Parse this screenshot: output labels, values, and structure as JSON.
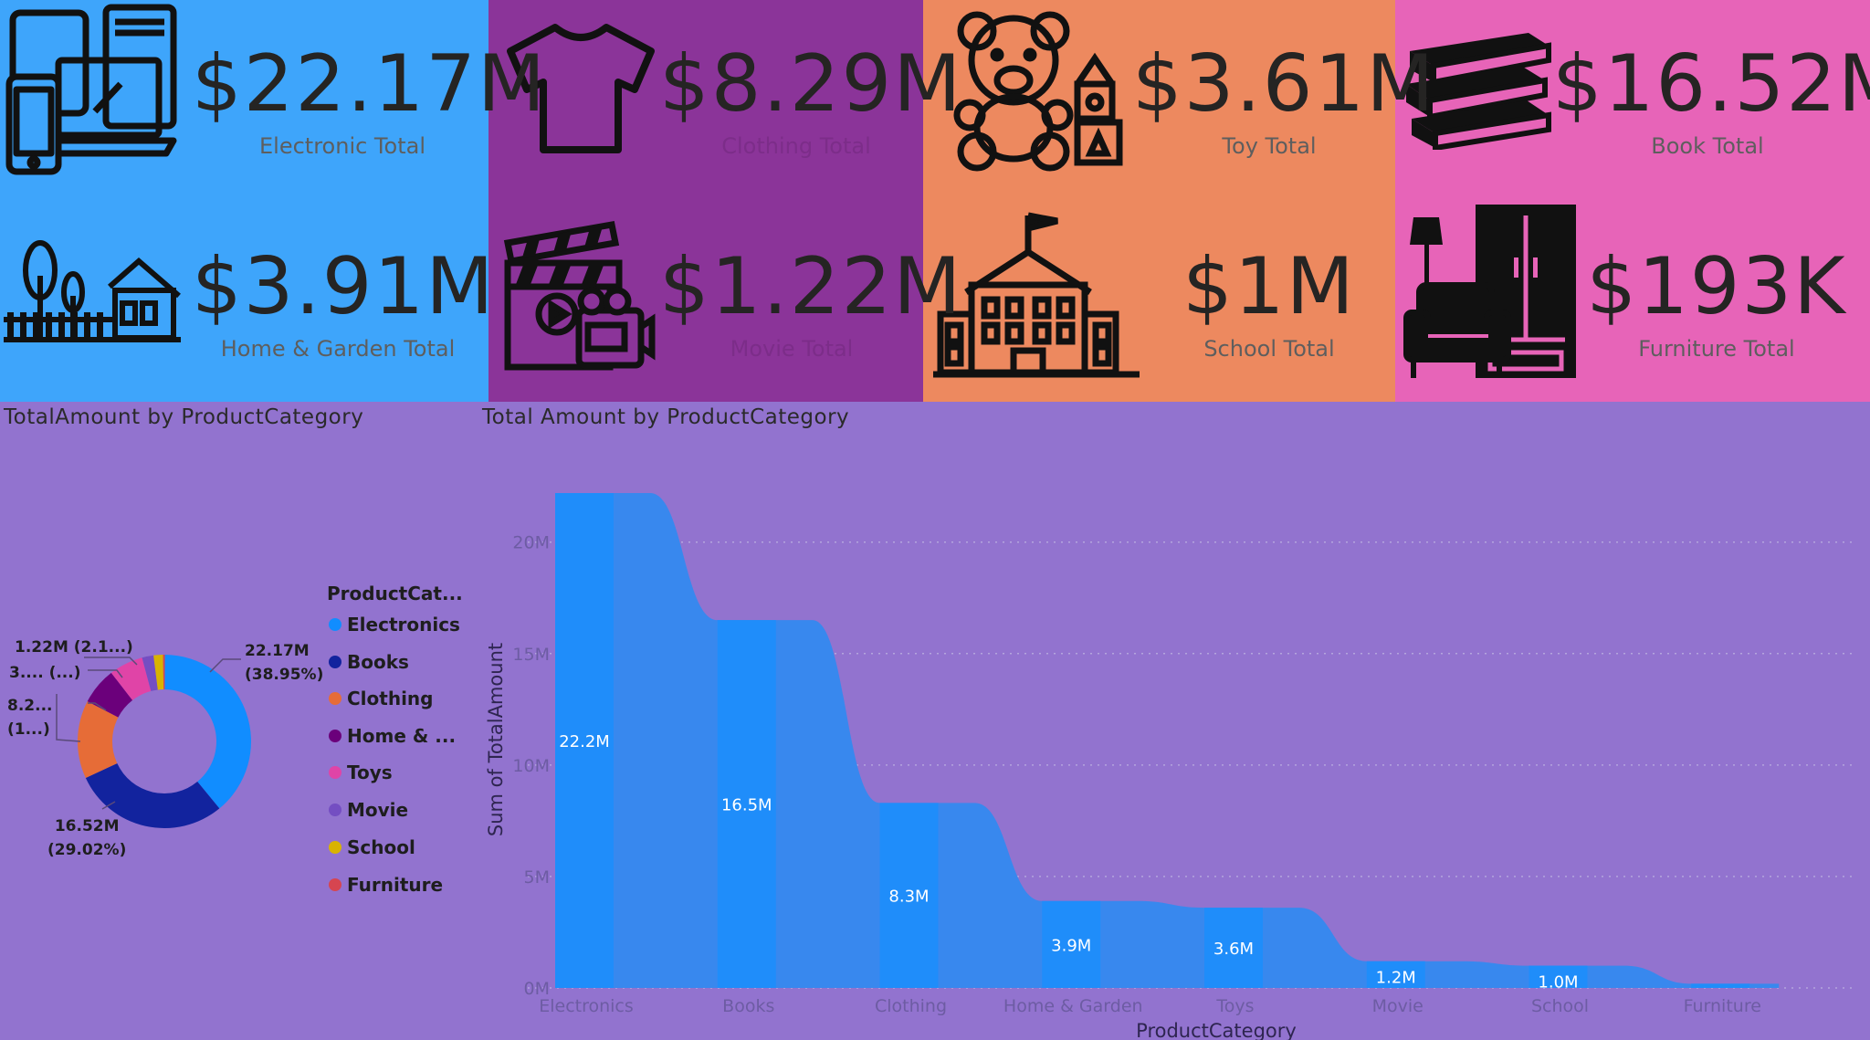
{
  "colors": {
    "tile_blue": "#3ea5fb",
    "tile_purple": "#8b3499",
    "tile_orange": "#ed895f",
    "tile_pink": "#e764b8",
    "background": "#9273cf",
    "area_fill": "#3888ee",
    "bar_fill": "#1f8dfa"
  },
  "kpis": [
    {
      "value": "$22.17M",
      "label": "Electronic Total",
      "icon": "devices-icon"
    },
    {
      "value": "$8.29M",
      "label": "Clothing Total",
      "icon": "tshirt-icon"
    },
    {
      "value": "$3.61M",
      "label": "Toy Total",
      "icon": "teddy-bear-icon"
    },
    {
      "value": "$16.52M",
      "label": "Book Total",
      "icon": "books-icon"
    },
    {
      "value": "$3.91M",
      "label": "Home & Garden Total",
      "icon": "house-garden-icon"
    },
    {
      "value": "$1.22M",
      "label": "Movie Total",
      "icon": "clapperboard-icon"
    },
    {
      "value": "$1M",
      "label": "School Total",
      "icon": "school-icon"
    },
    {
      "value": "$193K",
      "label": "Furniture Total",
      "icon": "furniture-icon"
    }
  ],
  "donut": {
    "title": "TotalAmount by ProductCategory",
    "legend_title": "ProductCat...",
    "legend": [
      {
        "label": "Electronics",
        "color": "#118dff"
      },
      {
        "label": "Books",
        "color": "#12239e"
      },
      {
        "label": "Clothing",
        "color": "#e66c37"
      },
      {
        "label": "Home & ...",
        "color": "#6b007b"
      },
      {
        "label": "Toys",
        "color": "#e044a7"
      },
      {
        "label": "Movie",
        "color": "#744ec2"
      },
      {
        "label": "School",
        "color": "#d9b300"
      },
      {
        "label": "Furniture",
        "color": "#d64550"
      }
    ],
    "labels": {
      "electronics_value": "22.17M",
      "electronics_pct": "(38.95%)",
      "books_value": "16.52M",
      "books_pct": "(29.02%)",
      "clothing_value": "8.2...",
      "clothing_pct": "(1...)",
      "home_label": "3.... (...)",
      "movie_label": "1.22M (2.1...)"
    }
  },
  "chart_data": [
    {
      "type": "pie",
      "title": "TotalAmount by ProductCategory",
      "categories": [
        "Electronics",
        "Books",
        "Clothing",
        "Home & Garden",
        "Toys",
        "Movie",
        "School",
        "Furniture"
      ],
      "values": [
        22.17,
        16.52,
        8.29,
        3.91,
        3.61,
        1.22,
        1.0,
        0.193
      ],
      "unit": "M"
    },
    {
      "type": "area",
      "title": "Total Amount by ProductCategory",
      "xlabel": "ProductCategory",
      "ylabel": "Sum of TotalAmount",
      "categories": [
        "Electronics",
        "Books",
        "Clothing",
        "Home & Garden",
        "Toys",
        "Movie",
        "School",
        "Furniture"
      ],
      "values": [
        22.2,
        16.5,
        8.3,
        3.9,
        3.6,
        1.2,
        1.0,
        0.19
      ],
      "data_labels": [
        "22.2M",
        "16.5M",
        "8.3M",
        "3.9M",
        "3.6M",
        "1.2M",
        "1.0M",
        ""
      ],
      "ylim": [
        0,
        22.2
      ],
      "yticks": [
        0,
        5,
        10,
        15,
        20
      ],
      "ytick_labels": [
        "0M",
        "5M",
        "10M",
        "15M",
        "20M"
      ],
      "grid": true
    }
  ]
}
